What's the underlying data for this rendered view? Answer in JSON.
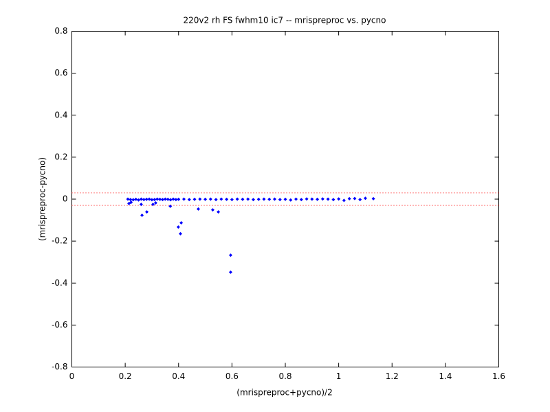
{
  "chart_data": {
    "type": "scatter",
    "title": "220v2 rh FS fwhm10 ic7 -- mrispreproc vs. pycno",
    "xlabel": "(mrispreproc+pycno)/2",
    "ylabel": "(mrispreproc-pycno)",
    "color": "#0000ff",
    "x": [
      0.21,
      0.22,
      0.23,
      0.24,
      0.25,
      0.26,
      0.27,
      0.28,
      0.29,
      0.3,
      0.31,
      0.32,
      0.33,
      0.34,
      0.35,
      0.36,
      0.37,
      0.38,
      0.39,
      0.4,
      0.42,
      0.44,
      0.46,
      0.48,
      0.5,
      0.52,
      0.54,
      0.56,
      0.58,
      0.6,
      0.62,
      0.64,
      0.66,
      0.68,
      0.7,
      0.72,
      0.74,
      0.76,
      0.78,
      0.8,
      0.82,
      0.84,
      0.86,
      0.88,
      0.9,
      0.92,
      0.94,
      0.96,
      0.98,
      1.0,
      1.02,
      1.04,
      1.06,
      1.08,
      1.1,
      1.13,
      0.214,
      0.222,
      0.263,
      0.26,
      0.281,
      0.304,
      0.314,
      0.369,
      0.399,
      0.41,
      0.407,
      0.474,
      0.528,
      0.549,
      0.595,
      0.595
    ],
    "values": [
      0,
      -0.002,
      -0.003,
      -0.001,
      -0.004,
      0,
      -0.002,
      -0.001,
      0,
      -0.003,
      -0.002,
      0,
      -0.001,
      -0.002,
      0,
      -0.001,
      -0.003,
      0,
      -0.002,
      -0.001,
      0,
      -0.002,
      -0.001,
      0,
      -0.001,
      0,
      -0.002,
      0,
      -0.001,
      -0.002,
      0,
      -0.001,
      0,
      -0.002,
      -0.001,
      0,
      -0.001,
      0,
      -0.002,
      -0.001,
      -0.004,
      0,
      -0.002,
      0.001,
      0,
      -0.001,
      0.001,
      0,
      -0.002,
      0.001,
      -0.006,
      0.002,
      0.003,
      -0.002,
      0.004,
      0.002,
      -0.021,
      -0.015,
      -0.077,
      -0.025,
      -0.061,
      -0.025,
      -0.018,
      -0.034,
      -0.133,
      -0.113,
      -0.165,
      -0.047,
      -0.051,
      -0.061,
      -0.267,
      -0.348
    ],
    "reference_lines": {
      "values": [
        0.03,
        -0.03
      ],
      "color": "#ff0000"
    },
    "xlim": [
      0,
      1.6
    ],
    "xticks": [
      0,
      0.2,
      0.4,
      0.6,
      0.8,
      1,
      1.2,
      1.4,
      1.6
    ],
    "ylim": [
      -0.8,
      0.8
    ],
    "yticks": [
      -0.8,
      -0.6,
      -0.4,
      -0.2,
      0,
      0.2,
      0.4,
      0.6,
      0.8
    ]
  }
}
